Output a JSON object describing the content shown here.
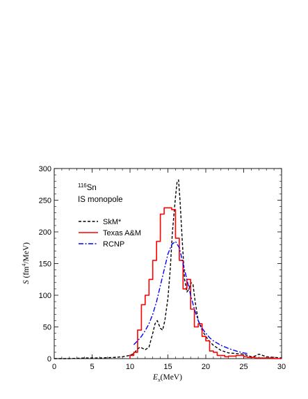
{
  "chart_data": {
    "type": "line",
    "xlabel": {
      "symbol": "E",
      "sub": "x",
      "unit": "(MeV)"
    },
    "ylabel": {
      "symbol": "S",
      "unit_pre": "(fm",
      "unit_sup": "4",
      "unit_post": "/MeV)"
    },
    "xlim": [
      0,
      30
    ],
    "ylim": [
      0,
      300
    ],
    "x_ticks": [
      0,
      5,
      10,
      15,
      20,
      25,
      30
    ],
    "y_ticks": [
      0,
      50,
      100,
      150,
      200,
      250,
      300
    ],
    "annotation": {
      "nucleus_mass": "116",
      "nucleus_symbol": "Sn",
      "mode": "IS monopole"
    },
    "legend_position": "upper-left",
    "series": [
      {
        "name": "SkM*",
        "style": "dashed",
        "color": "#000000",
        "x": [
          0,
          2,
          4,
          6,
          8,
          9,
          10,
          10.5,
          11,
          11.3,
          11.7,
          12,
          12.5,
          13,
          13.3,
          13.6,
          14,
          14.3,
          14.6,
          15,
          15.3,
          15.6,
          16,
          16.2,
          16.4,
          16.6,
          16.9,
          17.2,
          17.5,
          17.8,
          18,
          18.3,
          18.6,
          19,
          19.5,
          20,
          20.5,
          21,
          22,
          23,
          24,
          25,
          25.5,
          26,
          26.5,
          27,
          27.5,
          28,
          29,
          30
        ],
        "y": [
          0,
          0,
          1,
          1,
          2,
          3,
          5,
          8,
          15,
          18,
          16,
          14,
          18,
          40,
          55,
          60,
          48,
          45,
          60,
          95,
          140,
          200,
          255,
          278,
          282,
          250,
          185,
          125,
          105,
          110,
          120,
          118,
          90,
          60,
          45,
          35,
          27,
          21,
          13,
          9,
          8,
          7,
          5,
          3,
          4,
          7,
          5,
          3,
          2,
          1
        ]
      },
      {
        "name": "Texas A&M",
        "style": "step",
        "color": "#ff0000",
        "edges": [
          10,
          10.5,
          11,
          11.5,
          12,
          12.5,
          13,
          13.5,
          14,
          14.5,
          15,
          15.5,
          16,
          16.5,
          17,
          17.5,
          18,
          18.5,
          19,
          19.5,
          20,
          20.5,
          21,
          21.5,
          22,
          22.5,
          23,
          23.5,
          24,
          24.5,
          25,
          25.5,
          26,
          26.5,
          27,
          27.5,
          28,
          28.5,
          29,
          29.5,
          30
        ],
        "values": [
          5,
          10,
          45,
          85,
          100,
          125,
          155,
          185,
          228,
          238,
          238,
          235,
          190,
          155,
          110,
          125,
          78,
          50,
          55,
          35,
          28,
          12,
          10,
          5,
          5,
          3,
          4,
          4,
          5,
          5,
          3,
          2,
          2,
          1,
          1,
          1,
          1,
          1,
          0,
          0
        ]
      },
      {
        "name": "RCNP",
        "style": "dashdot",
        "color": "#0000ff",
        "x": [
          10.5,
          11,
          11.5,
          12,
          12.5,
          13,
          13.5,
          14,
          14.5,
          15,
          15.5,
          16,
          16.5,
          17,
          17.5,
          18,
          18.5,
          19,
          19.5,
          20,
          20.5,
          21,
          22,
          23,
          24,
          25,
          25.5
        ],
        "y": [
          22,
          28,
          35,
          44,
          55,
          70,
          90,
          115,
          140,
          165,
          180,
          185,
          175,
          150,
          125,
          100,
          78,
          60,
          48,
          40,
          33,
          28,
          21,
          16,
          12,
          9,
          8
        ]
      }
    ]
  }
}
